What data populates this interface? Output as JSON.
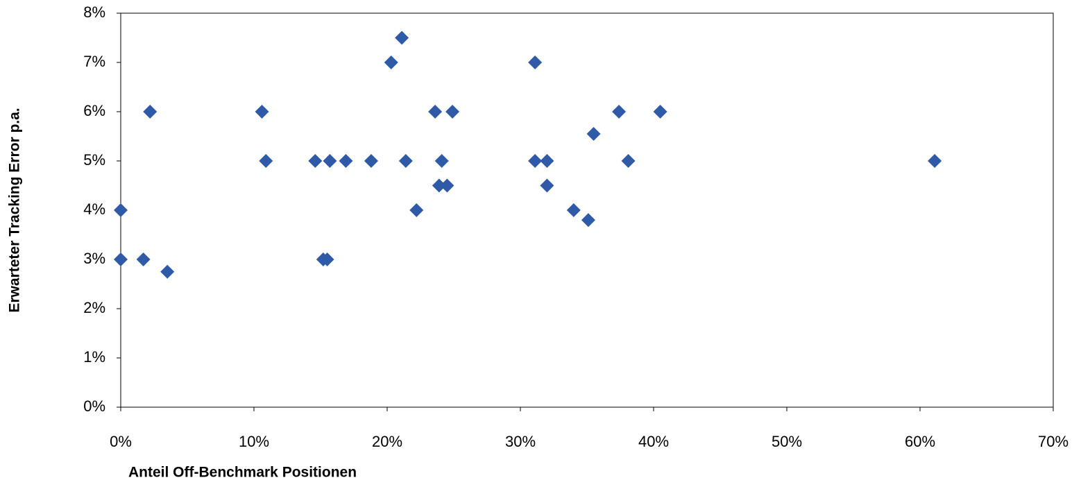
{
  "chart_data": {
    "type": "scatter",
    "xlabel": "Anteil Off-Benchmark Positionen",
    "ylabel": "Erwarteter Tracking Error p.a.",
    "x": [
      0,
      0,
      1.7,
      2.2,
      3.5,
      10.6,
      10.9,
      14.6,
      15.2,
      15.5,
      15.7,
      16.9,
      18.8,
      20.3,
      21.1,
      21.4,
      22.2,
      23.6,
      23.9,
      24.1,
      24.5,
      24.9,
      31.1,
      31.1,
      32,
      32,
      34,
      35.1,
      35.5,
      37.4,
      38.1,
      40.5,
      61.1
    ],
    "values": [
      4,
      3,
      3,
      6,
      2.75,
      6,
      5,
      5,
      3,
      3,
      5,
      5,
      5,
      7,
      7.5,
      5,
      4,
      6,
      4.5,
      5,
      4.5,
      6,
      7,
      5,
      5,
      4.5,
      4,
      3.8,
      5.55,
      6,
      5,
      6,
      5
    ],
    "color": "#2e5aa8",
    "xlim": [
      0,
      70
    ],
    "xticks": [
      {
        "value": 0,
        "label": "0%"
      },
      {
        "value": 10,
        "label": "10%"
      },
      {
        "value": 20,
        "label": "20%"
      },
      {
        "value": 30,
        "label": "30%"
      },
      {
        "value": 40,
        "label": "40%"
      },
      {
        "value": 50,
        "label": "50%"
      },
      {
        "value": 60,
        "label": "60%"
      },
      {
        "value": 70,
        "label": "70%"
      }
    ],
    "ylim": [
      0,
      8
    ],
    "yticks": [
      {
        "value": 0,
        "label": "0%"
      },
      {
        "value": 1,
        "label": "1%"
      },
      {
        "value": 2,
        "label": "2%"
      },
      {
        "value": 3,
        "label": "3%"
      },
      {
        "value": 4,
        "label": "4%"
      },
      {
        "value": 5,
        "label": "5%"
      },
      {
        "value": 6,
        "label": "6%"
      },
      {
        "value": 7,
        "label": "7%"
      },
      {
        "value": 8,
        "label": "8%"
      }
    ]
  }
}
